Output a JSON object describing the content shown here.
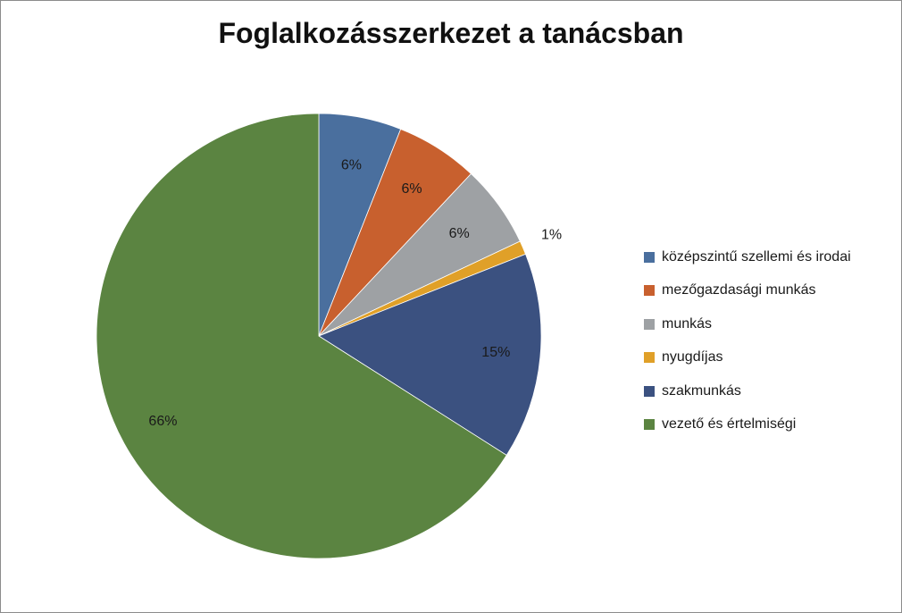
{
  "chart_data": {
    "type": "pie",
    "title": "Foglalkozásszerkezet a tanácsban",
    "start": "12 o'clock",
    "direction": "clockwise",
    "legend_position": "right",
    "slices": [
      {
        "name": "középszintű szellemi és irodai",
        "value": 6,
        "label": "6%",
        "color": "#4a6f9e"
      },
      {
        "name": "mezőgazdasági munkás",
        "value": 6,
        "label": "6%",
        "color": "#c8602e"
      },
      {
        "name": "munkás",
        "value": 6,
        "label": "6%",
        "color": "#9ea1a4"
      },
      {
        "name": "nyugdíjas",
        "value": 1,
        "label": "1%",
        "color": "#e0a028"
      },
      {
        "name": "szakmunkás",
        "value": 15,
        "label": "15%",
        "color": "#3b5180"
      },
      {
        "name": "vezető és értelmiségi",
        "value": 66,
        "label": "66%",
        "color": "#5b8441"
      }
    ]
  }
}
